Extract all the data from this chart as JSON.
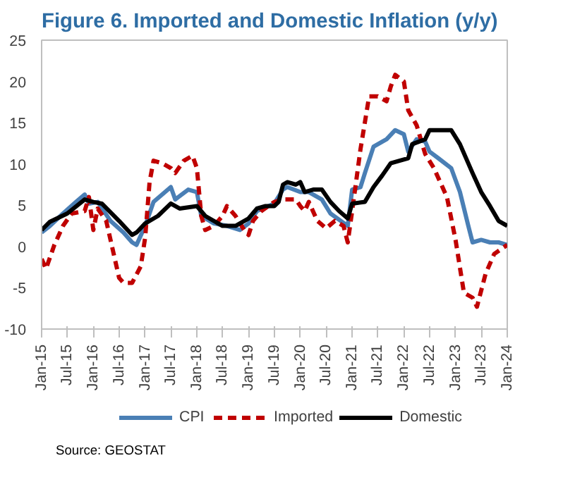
{
  "chart_data": {
    "type": "line",
    "title": "Figure 6. Imported and Domestic Inflation (y/y)",
    "xlim": [
      "2015-01",
      "2024-01"
    ],
    "xticks": [
      {
        "value": "2015-01",
        "label": "Jan-15"
      },
      {
        "value": "2015-07",
        "label": "Jul-15"
      },
      {
        "value": "2016-01",
        "label": "Jan-16"
      },
      {
        "value": "2016-07",
        "label": "Jul-16"
      },
      {
        "value": "2017-01",
        "label": "Jan-17"
      },
      {
        "value": "2017-07",
        "label": "Jul-17"
      },
      {
        "value": "2018-01",
        "label": "Jan-18"
      },
      {
        "value": "2018-07",
        "label": "Jul-18"
      },
      {
        "value": "2019-01",
        "label": "Jan-19"
      },
      {
        "value": "2019-07",
        "label": "Jul-19"
      },
      {
        "value": "2020-01",
        "label": "Jan-20"
      },
      {
        "value": "2020-07",
        "label": "Jul-20"
      },
      {
        "value": "2021-01",
        "label": "Jan-21"
      },
      {
        "value": "2021-07",
        "label": "Jul-21"
      },
      {
        "value": "2022-01",
        "label": "Jan-22"
      },
      {
        "value": "2022-07",
        "label": "Jul-22"
      },
      {
        "value": "2023-01",
        "label": "Jan-23"
      },
      {
        "value": "2023-07",
        "label": "Jul-23"
      },
      {
        "value": "2024-01",
        "label": "Jan-24"
      }
    ],
    "ylim": [
      -10,
      25
    ],
    "yticks": [
      -10,
      -5,
      0,
      5,
      10,
      15,
      20,
      25
    ],
    "grid": false,
    "legend": "bottom",
    "marker": "none",
    "series": [
      {
        "name": "CPI",
        "color": "#4a7fb5",
        "line_style": "solid",
        "x": [
          "2015-01",
          "2015-03",
          "2015-06",
          "2015-09",
          "2015-11",
          "2015-12",
          "2016-02",
          "2016-05",
          "2016-08",
          "2016-10",
          "2016-11",
          "2017-01",
          "2017-03",
          "2017-05",
          "2017-07",
          "2017-08",
          "2017-11",
          "2018-01",
          "2018-02",
          "2018-05",
          "2018-08",
          "2018-11",
          "2019-01",
          "2019-03",
          "2019-07",
          "2019-09",
          "2019-10",
          "2020-01",
          "2020-03",
          "2020-06",
          "2020-08",
          "2020-12",
          "2021-01",
          "2021-03",
          "2021-04",
          "2021-06",
          "2021-08",
          "2021-09",
          "2021-11",
          "2022-01",
          "2022-02",
          "2022-04",
          "2022-06",
          "2022-07",
          "2022-09",
          "2022-12",
          "2023-02",
          "2023-04",
          "2023-05",
          "2023-07",
          "2023-09",
          "2023-11",
          "2024-01"
        ],
        "values": [
          1.7,
          2.5,
          4.0,
          5.4,
          6.3,
          5.2,
          5.4,
          3.1,
          1.7,
          0.5,
          0.2,
          2.5,
          5.4,
          6.3,
          7.2,
          5.7,
          6.9,
          6.6,
          3.7,
          2.8,
          2.5,
          2.0,
          2.8,
          4.3,
          5.2,
          6.9,
          7.2,
          6.6,
          6.6,
          5.7,
          4.0,
          2.5,
          6.9,
          7.2,
          8.9,
          12.1,
          12.7,
          13.0,
          14.1,
          13.6,
          11.5,
          13.0,
          12.7,
          11.5,
          10.7,
          9.5,
          6.6,
          2.5,
          0.5,
          0.8,
          0.5,
          0.5,
          0.2
        ]
      },
      {
        "name": "Imported",
        "color": "#c00000",
        "line_style": "dashed",
        "x": [
          "2015-01",
          "2015-02",
          "2015-04",
          "2015-06",
          "2015-08",
          "2015-11",
          "2015-12",
          "2016-01",
          "2016-02",
          "2016-04",
          "2016-07",
          "2016-08",
          "2016-10",
          "2016-12",
          "2017-01",
          "2017-02",
          "2017-03",
          "2017-05",
          "2017-07",
          "2017-08",
          "2017-10",
          "2017-12",
          "2018-01",
          "2018-02",
          "2018-03",
          "2018-05",
          "2018-07",
          "2018-08",
          "2018-10",
          "2018-12",
          "2019-01",
          "2019-02",
          "2019-04",
          "2019-07",
          "2019-09",
          "2019-12",
          "2020-01",
          "2020-02",
          "2020-03",
          "2020-05",
          "2020-07",
          "2020-09",
          "2020-11",
          "2020-12",
          "2021-01",
          "2021-03",
          "2021-05",
          "2021-07",
          "2021-09",
          "2021-10",
          "2021-11",
          "2022-01",
          "2022-02",
          "2022-04",
          "2022-06",
          "2022-08",
          "2022-11",
          "2023-01",
          "2023-03",
          "2023-05",
          "2023-06",
          "2023-08",
          "2023-10",
          "2024-01"
        ],
        "values": [
          -1.5,
          -2.7,
          0.2,
          2.5,
          4.0,
          4.3,
          6.0,
          2.0,
          4.6,
          3.1,
          -3.8,
          -4.4,
          -4.4,
          -2.4,
          1.1,
          7.8,
          10.4,
          10.1,
          9.5,
          8.9,
          10.4,
          11.0,
          9.5,
          3.7,
          2.0,
          2.5,
          3.7,
          4.9,
          3.7,
          2.0,
          1.4,
          3.1,
          4.3,
          5.4,
          5.7,
          5.7,
          4.9,
          4.3,
          5.4,
          3.1,
          2.2,
          3.1,
          2.5,
          0.5,
          4.3,
          11.8,
          18.2,
          18.2,
          17.6,
          19.4,
          20.8,
          20.0,
          16.5,
          14.7,
          11.2,
          9.5,
          6.0,
          0.8,
          -5.6,
          -6.2,
          -7.3,
          -3.3,
          -0.9,
          0.2
        ]
      },
      {
        "name": "Domestic",
        "color": "#000000",
        "line_style": "solid",
        "x": [
          "2015-01",
          "2015-03",
          "2015-07",
          "2015-11",
          "2016-01",
          "2016-03",
          "2016-07",
          "2016-10",
          "2016-11",
          "2017-01",
          "2017-04",
          "2017-07",
          "2017-09",
          "2018-01",
          "2018-03",
          "2018-07",
          "2018-10",
          "2018-12",
          "2019-01",
          "2019-03",
          "2019-05",
          "2019-07",
          "2019-08",
          "2019-09",
          "2019-10",
          "2019-12",
          "2020-01",
          "2020-02",
          "2020-04",
          "2020-06",
          "2020-08",
          "2020-10",
          "2020-12",
          "2021-01",
          "2021-04",
          "2021-06",
          "2021-08",
          "2021-10",
          "2021-12",
          "2022-02",
          "2022-03",
          "2022-06",
          "2022-07",
          "2022-09",
          "2022-12",
          "2023-02",
          "2023-05",
          "2023-07",
          "2023-09",
          "2023-11",
          "2024-01"
        ],
        "values": [
          2.0,
          3.0,
          4.0,
          5.7,
          5.4,
          5.2,
          3.1,
          1.4,
          1.7,
          2.8,
          3.7,
          5.2,
          4.6,
          4.9,
          3.7,
          2.5,
          2.5,
          3.1,
          3.4,
          4.6,
          4.9,
          4.9,
          5.4,
          7.5,
          7.8,
          7.5,
          7.8,
          6.6,
          6.9,
          6.9,
          5.4,
          4.3,
          3.4,
          5.2,
          5.4,
          7.2,
          8.6,
          10.1,
          10.4,
          10.7,
          12.4,
          13.0,
          14.1,
          14.1,
          14.1,
          12.4,
          8.9,
          6.6,
          4.9,
          3.1,
          2.5
        ]
      }
    ],
    "annotations": [
      "Source: GEOSTAT"
    ]
  }
}
